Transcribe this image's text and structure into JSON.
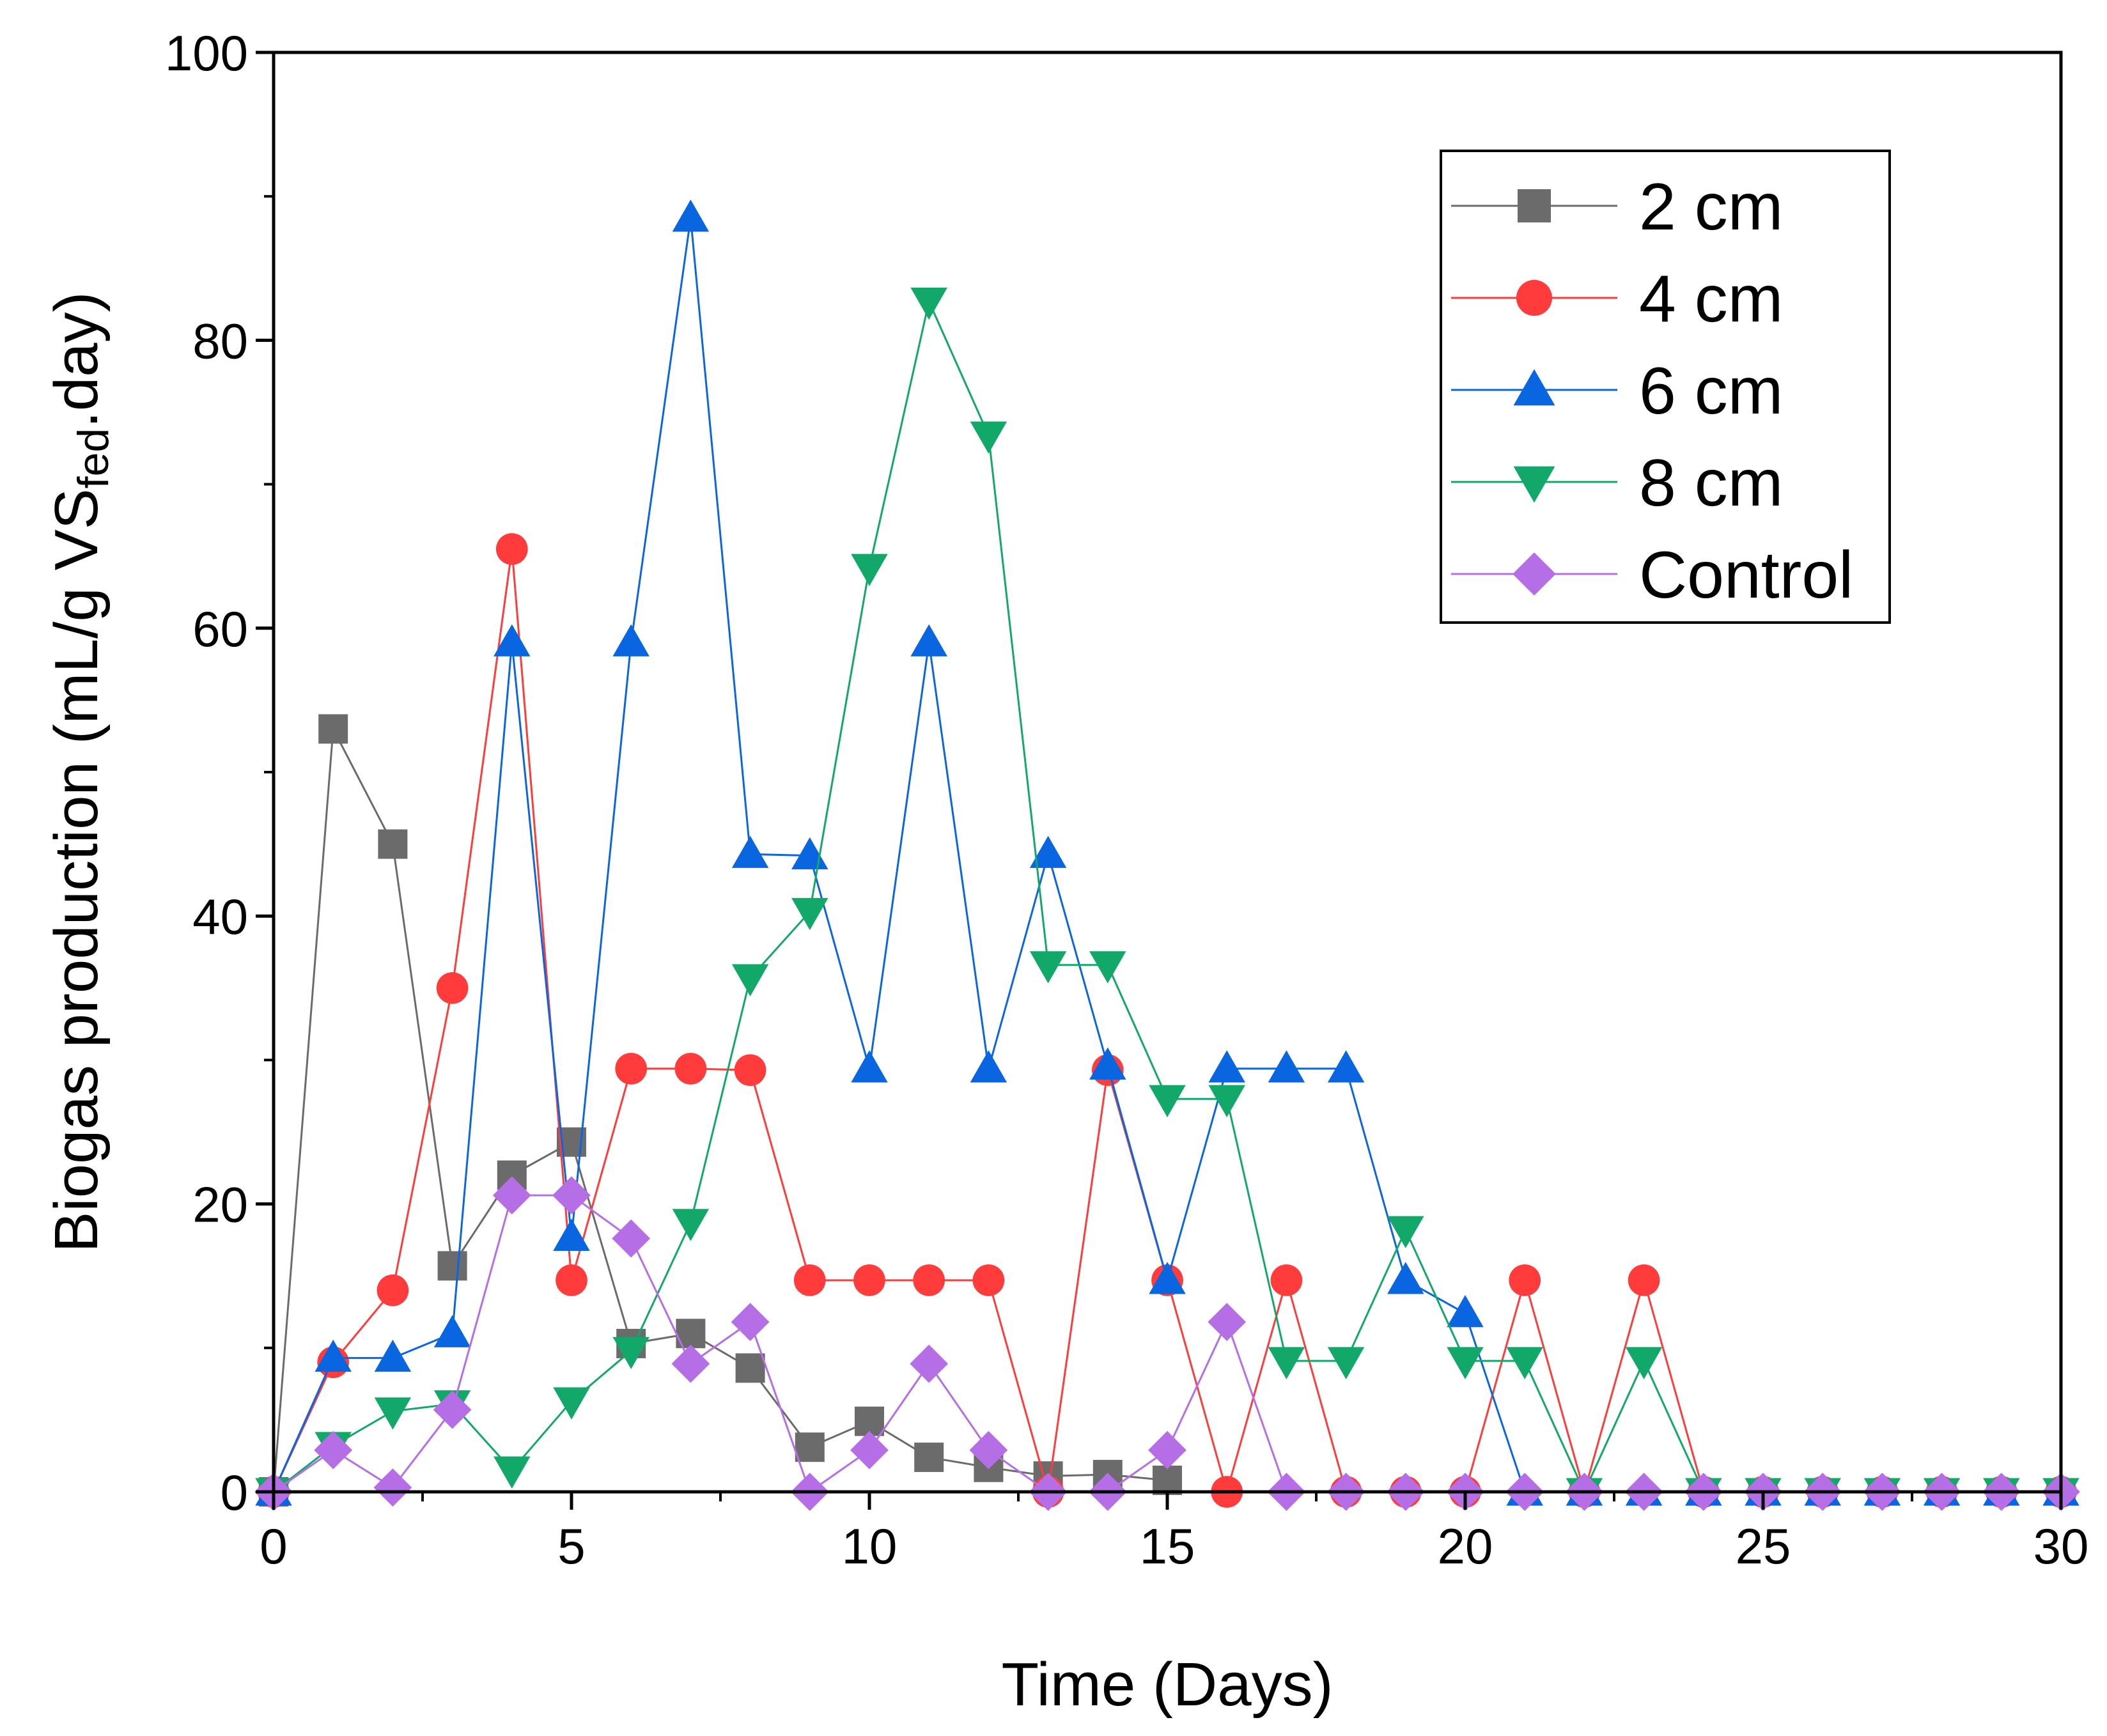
{
  "chart_data": {
    "type": "line",
    "title": "",
    "xlabel": "Time (Days)",
    "ylabel": {
      "main": "Biogas production (mL/g VS",
      "subscript": "fed",
      "suffix": ".day)"
    },
    "xlim": [
      0,
      30
    ],
    "ylim": [
      0,
      100
    ],
    "x_ticks": [
      0,
      5,
      10,
      15,
      20,
      25,
      30
    ],
    "y_ticks": [
      0,
      20,
      40,
      60,
      80,
      100
    ],
    "grid": false,
    "legend_position": "top-right",
    "series": [
      {
        "name": "2 cm",
        "color": "#6b6b6b",
        "marker": "square",
        "x": [
          0,
          1,
          2,
          3,
          4,
          5,
          6,
          7,
          8,
          9,
          10,
          11,
          12,
          13,
          14,
          15
        ],
        "y": [
          0,
          53,
          45,
          15.7,
          22,
          24.3,
          10.3,
          11,
          8.6,
          3.1,
          4.9,
          2.4,
          1.7,
          1.1,
          1.2,
          0.8
        ]
      },
      {
        "name": "4 cm",
        "color": "#ff3b3b",
        "marker": "circle",
        "x": [
          0,
          1,
          2,
          3,
          4,
          5,
          6,
          7,
          8,
          9,
          10,
          11,
          12,
          13,
          14,
          15,
          16,
          17,
          18,
          19,
          20,
          21,
          22,
          23,
          24,
          25,
          26,
          27,
          28,
          29,
          30
        ],
        "y": [
          0,
          9,
          14,
          35,
          65.5,
          14.7,
          29.4,
          29.4,
          29.3,
          14.7,
          14.7,
          14.7,
          14.7,
          0,
          29.3,
          14.7,
          0,
          14.7,
          0,
          0,
          0,
          14.7,
          0,
          14.7,
          0,
          0,
          0,
          0,
          0,
          0,
          0
        ]
      },
      {
        "name": "6 cm",
        "color": "#0a66e0",
        "marker": "triangle-up",
        "x": [
          0,
          1,
          2,
          3,
          4,
          5,
          6,
          7,
          8,
          9,
          10,
          11,
          12,
          13,
          14,
          15,
          16,
          17,
          18,
          19,
          20,
          21,
          22,
          23,
          24,
          25,
          26,
          27,
          28,
          29,
          30
        ],
        "y": [
          0,
          9.3,
          9.3,
          11,
          59,
          17.7,
          59,
          88.5,
          44.3,
          44.2,
          29.4,
          59,
          29.4,
          44.3,
          29.6,
          14.7,
          29.4,
          29.4,
          29.4,
          14.7,
          12.4,
          0,
          0,
          0,
          0,
          0,
          0,
          0,
          0,
          0,
          0
        ]
      },
      {
        "name": "8 cm",
        "color": "#12a86a",
        "marker": "triangle-down",
        "x": [
          0,
          1,
          2,
          3,
          4,
          5,
          6,
          7,
          8,
          9,
          10,
          11,
          12,
          13,
          14,
          15,
          16,
          17,
          18,
          19,
          20,
          21,
          22,
          23,
          24,
          25,
          26,
          27,
          28,
          29,
          30
        ],
        "y": [
          0,
          3.2,
          5.6,
          6.1,
          1.5,
          6.3,
          9.8,
          18.7,
          35.7,
          40.3,
          64.2,
          82.7,
          73.4,
          36.6,
          36.6,
          27.3,
          27.3,
          9.1,
          9.1,
          18.2,
          9.1,
          9.1,
          0,
          9.1,
          0,
          0,
          0,
          0,
          0,
          0,
          0
        ]
      },
      {
        "name": "Control",
        "color": "#b56ee6",
        "marker": "diamond",
        "x": [
          0,
          1,
          2,
          3,
          4,
          5,
          6,
          7,
          8,
          9,
          10,
          11,
          12,
          13,
          14,
          15,
          16,
          17,
          18,
          19,
          20,
          21,
          22,
          23,
          24,
          25,
          26,
          27,
          28,
          29,
          30
        ],
        "y": [
          0,
          2.9,
          0.3,
          5.7,
          20.6,
          20.6,
          17.6,
          8.9,
          11.8,
          0,
          2.9,
          8.9,
          2.9,
          0,
          0,
          2.9,
          11.8,
          0,
          0,
          0,
          0,
          0,
          0,
          0,
          0,
          0,
          0,
          0,
          0,
          0,
          0
        ]
      }
    ]
  }
}
